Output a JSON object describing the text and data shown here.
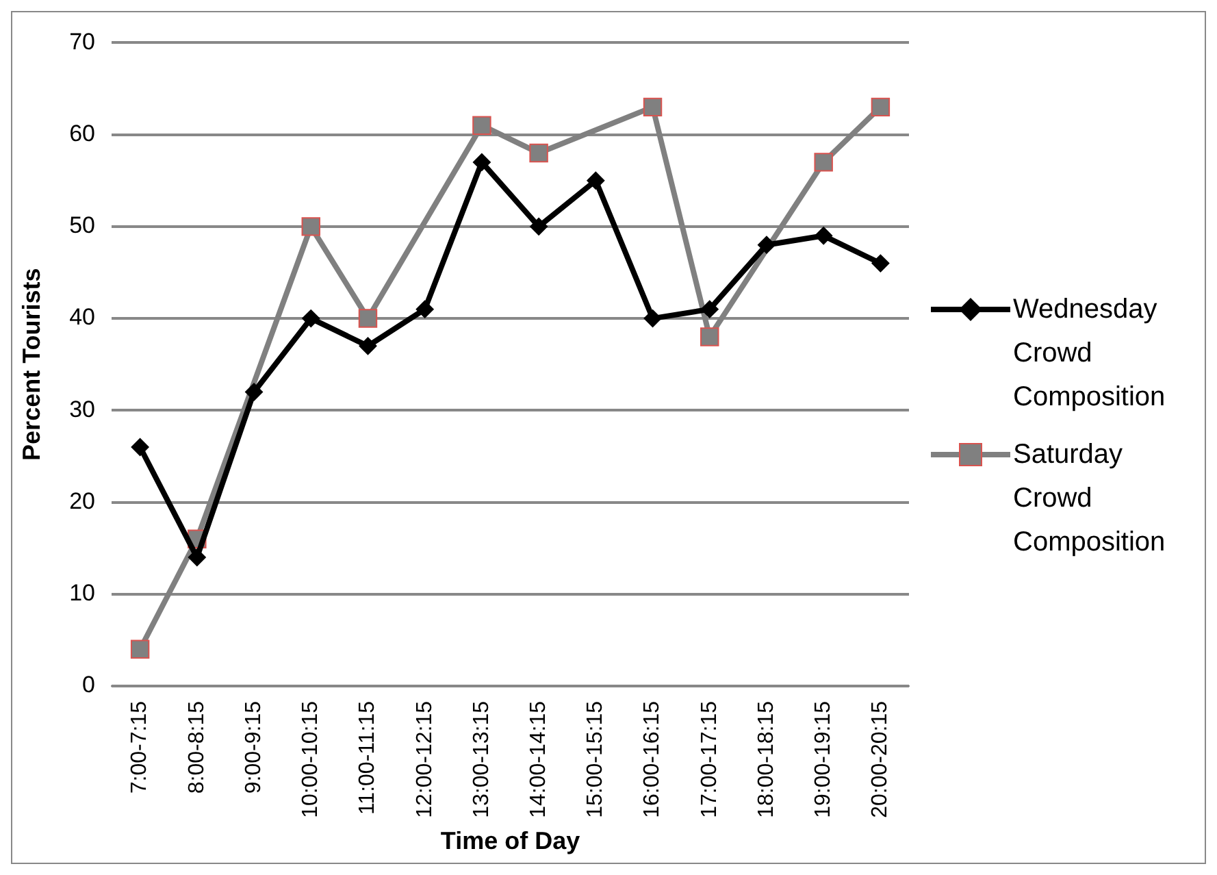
{
  "chart_data": {
    "type": "line",
    "xlabel": "Time of Day",
    "ylabel": "Percent Tourists",
    "categories": [
      "7:00-7:15",
      "8:00-8:15",
      "9:00-9:15",
      "10:00-10:15",
      "11:00-11:15",
      "12:00-12:15",
      "13:00-13:15",
      "14:00-14:15",
      "15:00-15:15",
      "16:00-16:15",
      "17:00-17:15",
      "18:00-18:15",
      "19:00-19:15",
      "20:00-20:15"
    ],
    "series": [
      {
        "name": "Wednesday Crowd Composition",
        "color": "#000000",
        "marker": "diamond",
        "values": [
          26,
          14,
          32,
          40,
          37,
          41,
          57,
          50,
          55,
          40,
          41,
          48,
          49,
          46
        ]
      },
      {
        "name": "Saturday Crowd Composition",
        "color": "#808080",
        "marker": "square",
        "values": [
          4,
          16,
          null,
          50,
          40,
          null,
          61,
          58,
          null,
          63,
          38,
          null,
          57,
          63
        ]
      }
    ],
    "ylim": [
      0,
      70
    ],
    "yticks": [
      0,
      10,
      20,
      30,
      40,
      50,
      60,
      70
    ],
    "grid": "y",
    "legend": "right"
  }
}
